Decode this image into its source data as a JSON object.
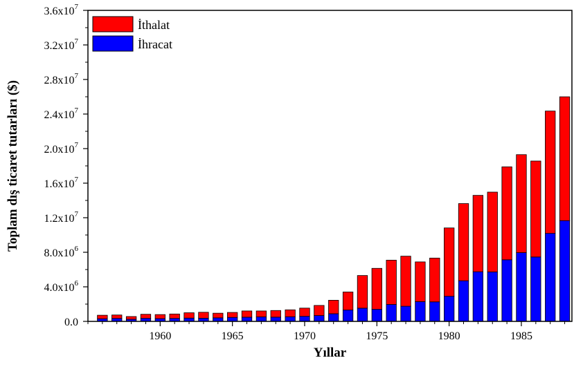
{
  "chart_data": {
    "type": "bar",
    "stacked": true,
    "xlabel": "Yıllar",
    "ylabel": "Toplam dış ticaret tutarları ($)",
    "x": [
      1956,
      1957,
      1958,
      1959,
      1960,
      1961,
      1962,
      1963,
      1964,
      1965,
      1966,
      1967,
      1968,
      1969,
      1970,
      1971,
      1972,
      1973,
      1974,
      1975,
      1976,
      1977,
      1978,
      1979,
      1980,
      1981,
      1982,
      1983,
      1984,
      1985,
      1986,
      1987,
      1988
    ],
    "series": [
      {
        "name": "İhracat",
        "color": "#0000ff",
        "values": [
          305000,
          345000,
          247000,
          354000,
          321000,
          347000,
          381000,
          368000,
          411000,
          464000,
          490000,
          522000,
          496000,
          537000,
          589000,
          677000,
          885000,
          1317000,
          1532000,
          1401000,
          1960000,
          1753000,
          2288000,
          2261000,
          2910000,
          4703000,
          5746000,
          5728000,
          7134000,
          7958000,
          7457000,
          10190000,
          11662000
        ]
      },
      {
        "name": "İthalat",
        "color": "#ff0000",
        "values": [
          407000,
          397000,
          315000,
          470000,
          468000,
          509000,
          619000,
          688000,
          537000,
          572000,
          718000,
          685000,
          764000,
          801000,
          948000,
          1171000,
          1563000,
          2086000,
          3778000,
          4739000,
          5129000,
          5796000,
          4599000,
          5069000,
          7909000,
          8933000,
          8843000,
          9235000,
          10757000,
          11343000,
          11105000,
          14158000,
          14335000
        ]
      }
    ],
    "xlim": [
      1955,
      1988.5
    ],
    "ylim": [
      0,
      36000000
    ],
    "x_ticks": [
      1960,
      1965,
      1970,
      1975,
      1980,
      1985
    ],
    "y_ticks": [
      {
        "value": 0,
        "mantissa": "0.0",
        "exponent": ""
      },
      {
        "value": 4000000,
        "mantissa": "4.0x10",
        "exponent": "6"
      },
      {
        "value": 8000000,
        "mantissa": "8.0x10",
        "exponent": "6"
      },
      {
        "value": 12000000,
        "mantissa": "1.2x10",
        "exponent": "7"
      },
      {
        "value": 16000000,
        "mantissa": "1.6x10",
        "exponent": "7"
      },
      {
        "value": 20000000,
        "mantissa": "2.0x10",
        "exponent": "7"
      },
      {
        "value": 24000000,
        "mantissa": "2.4x10",
        "exponent": "7"
      },
      {
        "value": 28000000,
        "mantissa": "2.8x10",
        "exponent": "7"
      },
      {
        "value": 32000000,
        "mantissa": "3.2x10",
        "exponent": "7"
      },
      {
        "value": 36000000,
        "mantissa": "3.6x10",
        "exponent": "7"
      }
    ],
    "legend": {
      "position": "top-left",
      "entries": [
        {
          "label": "İthalat",
          "color": "#ff0000"
        },
        {
          "label": "İhracat",
          "color": "#0000ff"
        }
      ]
    },
    "grid": false
  }
}
